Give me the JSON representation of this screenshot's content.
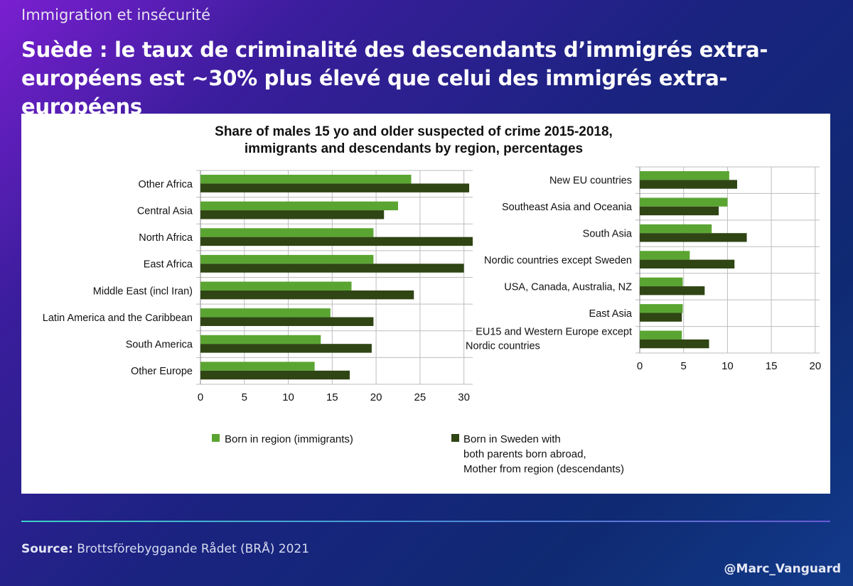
{
  "header": {
    "kicker": "Immigration et insécurité",
    "headline": "Suède : le taux de criminalité des descendants d’immigrés extra-européens est ~30% plus élevé que celui des immigrés extra-européens"
  },
  "footer": {
    "source_label": "Source:",
    "source_text": " Brottsförebyggande Rådet (BRÅ) 2021",
    "handle": "@Marc_Vanguard"
  },
  "colors": {
    "immigrants": "#5aa532",
    "descendants": "#2f4514",
    "grid": "#bdbdbd"
  },
  "chart_data": [
    {
      "type": "bar",
      "orientation": "horizontal",
      "title": "Share of males 15 yo and older suspected of crime 2015-2018,",
      "subtitle": "immigrants and descendants by region, percentages",
      "categories": [
        "Other Africa",
        "Central Asia",
        "North Africa",
        "East Africa",
        "Middle East (incl Iran)",
        "Latin America and the Caribbean",
        "South America",
        "Other Europe"
      ],
      "series": [
        {
          "name": "Born in region (immigrants)",
          "values": [
            24,
            22.5,
            19.7,
            19.7,
            17.2,
            14.8,
            13.7,
            13
          ]
        },
        {
          "name": "Born in Sweden with both parents born abroad, Mother from region (descendants)",
          "values": [
            30.6,
            20.9,
            31,
            30,
            24.3,
            19.7,
            19.5,
            17
          ]
        }
      ],
      "xlim": [
        0,
        31
      ],
      "xticks": [
        "0",
        "5",
        "10",
        "15",
        "20",
        "25",
        "30"
      ],
      "grid": true
    },
    {
      "type": "bar",
      "orientation": "horizontal",
      "categories": [
        "New EU countries",
        "Southeast Asia and Oceania",
        "South Asia",
        "Nordic countries except Sweden",
        "USA, Canada, Australia, NZ",
        "East Asia",
        "EU15 and Western Europe except Nordic countries"
      ],
      "category_lines": [
        [
          "New EU countries"
        ],
        [
          "Southeast Asia and Oceania"
        ],
        [
          "South Asia"
        ],
        [
          "Nordic countries except Sweden"
        ],
        [
          "USA, Canada, Australia, NZ"
        ],
        [
          "East Asia"
        ],
        [
          "EU15 and Western Europe except",
          " Nordic countries"
        ]
      ],
      "series": [
        {
          "name": "Born in region (immigrants)",
          "values": [
            10.2,
            10,
            8.2,
            5.7,
            4.9,
            4.9,
            4.8
          ]
        },
        {
          "name": "Born in Sweden with both parents born abroad, Mother from region (descendants)",
          "values": [
            11.1,
            9,
            12.2,
            10.8,
            7.4,
            4.8,
            7.9
          ]
        }
      ],
      "xlim": [
        0,
        20.5
      ],
      "xticks": [
        "0",
        "5",
        "10",
        "15",
        "20"
      ],
      "grid": true
    }
  ],
  "legend": {
    "immigrants_label": "Born in region (immigrants)",
    "descendants_lines": [
      "Born in Sweden with",
      "both parents born abroad,",
      "Mother from region (descendants)"
    ]
  }
}
